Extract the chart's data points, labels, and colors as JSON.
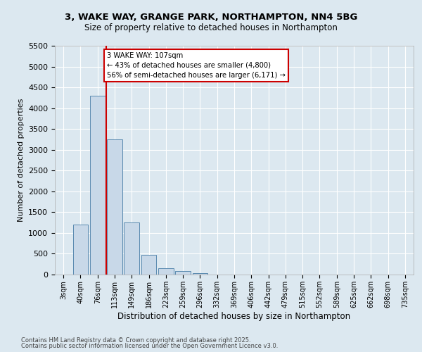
{
  "title1": "3, WAKE WAY, GRANGE PARK, NORTHAMPTON, NN4 5BG",
  "title2": "Size of property relative to detached houses in Northampton",
  "xlabel": "Distribution of detached houses by size in Northampton",
  "ylabel": "Number of detached properties",
  "categories": [
    "3sqm",
    "40sqm",
    "76sqm",
    "113sqm",
    "149sqm",
    "186sqm",
    "223sqm",
    "259sqm",
    "296sqm",
    "332sqm",
    "369sqm",
    "406sqm",
    "442sqm",
    "479sqm",
    "515sqm",
    "552sqm",
    "589sqm",
    "625sqm",
    "662sqm",
    "698sqm",
    "735sqm"
  ],
  "values": [
    0,
    1200,
    4300,
    3250,
    1250,
    480,
    160,
    80,
    40,
    0,
    0,
    0,
    0,
    0,
    0,
    0,
    0,
    0,
    0,
    0,
    0
  ],
  "bar_color": "#c8d8e8",
  "bar_edge_color": "#5a8ab0",
  "vline_color": "#cc0000",
  "ylim": [
    0,
    5500
  ],
  "yticks": [
    0,
    500,
    1000,
    1500,
    2000,
    2500,
    3000,
    3500,
    4000,
    4500,
    5000,
    5500
  ],
  "annotation_text": "3 WAKE WAY: 107sqm\n← 43% of detached houses are smaller (4,800)\n56% of semi-detached houses are larger (6,171) →",
  "annotation_box_color": "#ffffff",
  "annotation_box_edge": "#cc0000",
  "bg_color": "#dce8f0",
  "grid_color": "#ffffff",
  "footer1": "Contains HM Land Registry data © Crown copyright and database right 2025.",
  "footer2": "Contains public sector information licensed under the Open Government Licence v3.0."
}
